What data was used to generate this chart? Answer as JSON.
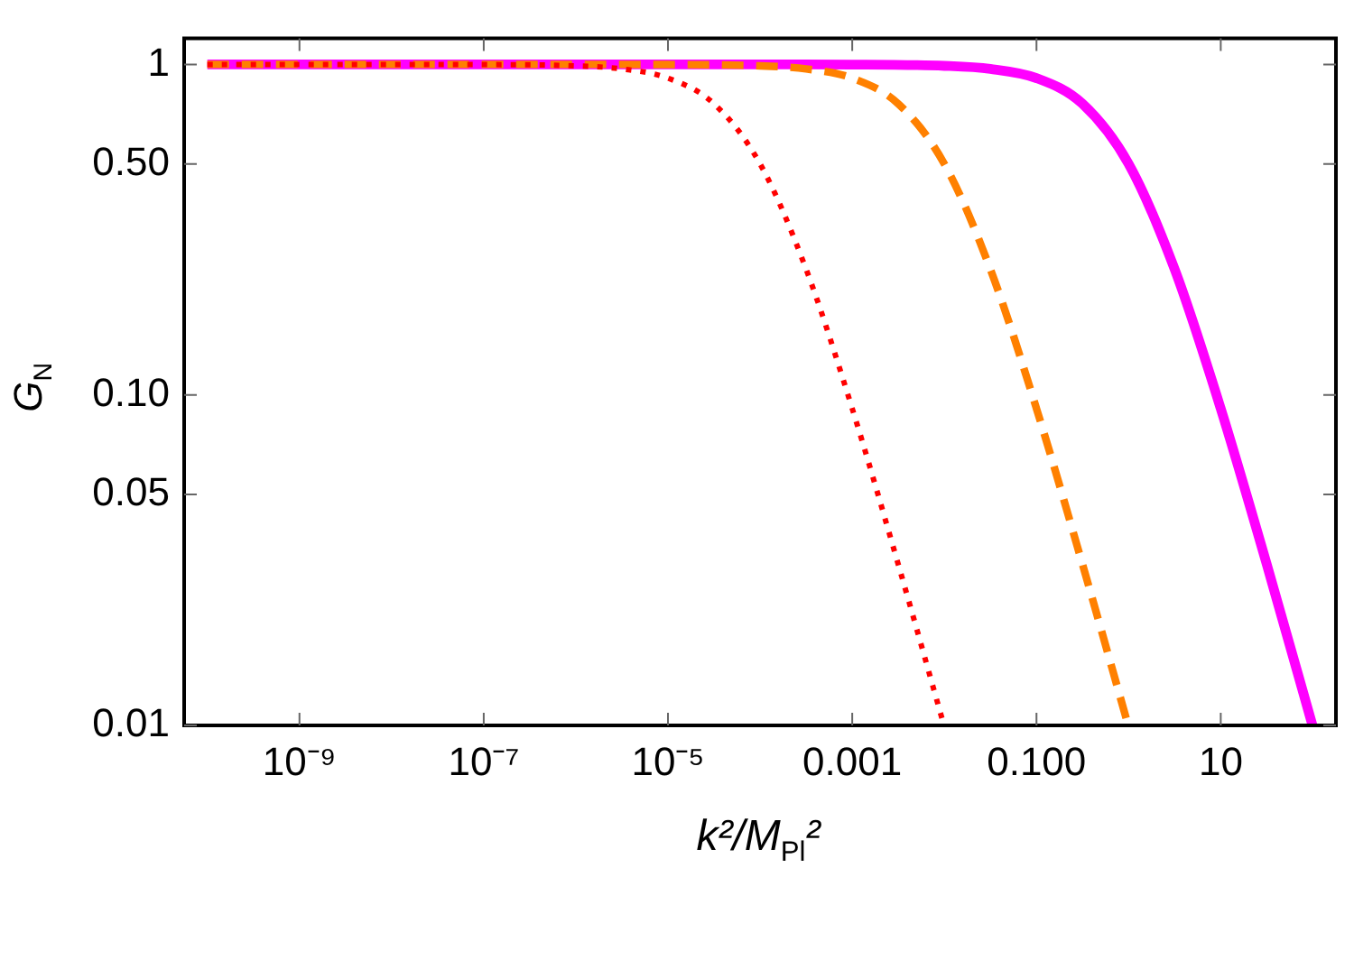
{
  "chart_data": {
    "type": "line",
    "xlabel": "k²/M$_{Pl}$²",
    "ylabel": "G$_{N}$",
    "log": "xy",
    "grid": false,
    "legend": false,
    "marker": "none",
    "xlim": [
      5.6e-11,
      178
    ],
    "ylim": [
      0.01,
      1.2
    ],
    "xticks": [
      {
        "value": 1e-09,
        "label": "10⁻⁹"
      },
      {
        "value": 1e-07,
        "label": "10⁻⁷"
      },
      {
        "value": 1e-05,
        "label": "10⁻⁵"
      },
      0.001,
      {
        "value": 0.1,
        "label": "0.100"
      },
      10
    ],
    "yticks": [
      0.01,
      0.05,
      {
        "value": 0.1,
        "label": "0.10"
      },
      {
        "value": 0.5,
        "label": "0.50"
      },
      1
    ],
    "series": [
      {
        "color": "#ff00ff",
        "line_style": "solid",
        "x": [
          1e-10,
          1e-08,
          1e-06,
          0.0001,
          0.001,
          0.01,
          0.0316,
          0.1,
          0.316,
          1,
          3.16,
          10,
          31.6,
          99
        ],
        "values": [
          1,
          1,
          1,
          1,
          0.999,
          0.99,
          0.969,
          0.909,
          0.76,
          0.5,
          0.24,
          0.0909,
          0.0307,
          0.01
        ]
      },
      {
        "color": "#ff8000",
        "line_style": "dashed",
        "x": [
          1e-10,
          1e-08,
          1e-06,
          1e-05,
          0.0001,
          0.000316,
          0.001,
          0.00316,
          0.01,
          0.0316,
          0.1,
          0.316,
          0.99
        ],
        "values": [
          1,
          1,
          1,
          0.999,
          0.99,
          0.969,
          0.909,
          0.76,
          0.5,
          0.24,
          0.0909,
          0.0307,
          0.01
        ]
      },
      {
        "color": "#ff0000",
        "line_style": "dotted",
        "x": [
          1e-10,
          1e-09,
          1e-08,
          1e-07,
          1e-06,
          3.16e-06,
          1e-05,
          3.16e-05,
          0.0001,
          0.000316,
          0.001,
          0.00316,
          0.0099
        ],
        "values": [
          1,
          1,
          1,
          0.999,
          0.99,
          0.969,
          0.909,
          0.76,
          0.5,
          0.24,
          0.0909,
          0.0307,
          0.01
        ]
      }
    ]
  }
}
